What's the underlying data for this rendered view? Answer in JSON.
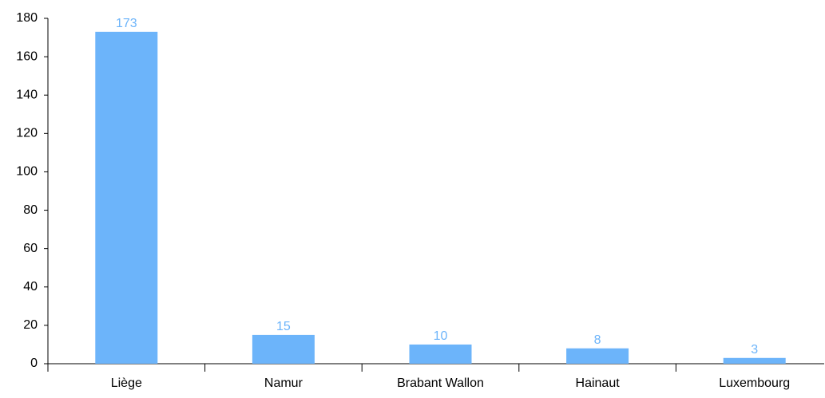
{
  "chart_data": {
    "type": "bar",
    "categories": [
      "Liège",
      "Namur",
      "Brabant Wallon",
      "Hainaut",
      "Luxembourg"
    ],
    "values": [
      173,
      15,
      10,
      8,
      3
    ],
    "color": "#6cb4fa",
    "ylim": [
      0,
      180
    ],
    "yticks": [
      0,
      20,
      40,
      60,
      80,
      100,
      120,
      140,
      160,
      180
    ],
    "grid": false
  }
}
